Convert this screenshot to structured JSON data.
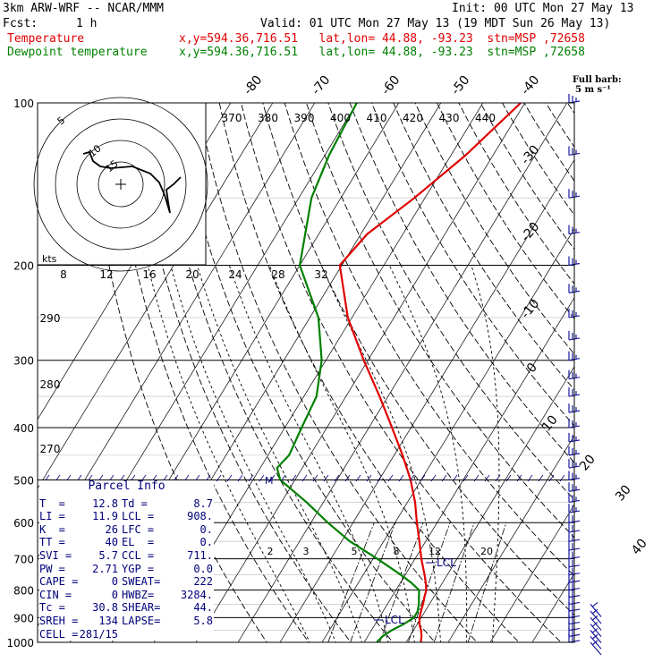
{
  "header": {
    "model": "3km ARW-WRF -- NCAR/MMM",
    "init": "Init: 00 UTC Mon 27 May 13",
    "fcst_label": "Fcst:",
    "fcst_value": "1 h",
    "valid": "Valid: 01 UTC Mon 27 May 13 (19 MDT Sun 26 May 13)",
    "temp_label": "Temperature",
    "temp_loc": "x,y=594.36,716.51   lat,lon= 44.88, -93.23  stn=MSP ,72658",
    "dew_label": "Dewpoint temperature",
    "dew_loc": "x,y=594.36,716.51   lat,lon= 44.88, -93.23  stn=MSP ,72658"
  },
  "wind_key": {
    "line1": "Full barb:",
    "line2": "5 m s⁻¹"
  },
  "hodograph": {
    "rings": [
      "5",
      "10",
      "15"
    ],
    "units": "kts"
  },
  "parcel_info": {
    "title": "Parcel Info",
    "rows": [
      [
        "T  =",
        "12.8",
        "Td =",
        "8.7"
      ],
      [
        "LI =",
        "11.9",
        "LCL =",
        "908."
      ],
      [
        "K  =",
        "26",
        "LFC =",
        "0."
      ],
      [
        "TT =",
        "40",
        "EL  =",
        "0."
      ],
      [
        "SVI =",
        "5.7",
        "CCL =",
        "711."
      ],
      [
        "PW =",
        "2.71",
        "YGP =",
        "0.0"
      ],
      [
        "CAPE =",
        "0",
        "SWEAT=",
        "222"
      ],
      [
        "CIN =",
        "0",
        "HWBZ=",
        "3284."
      ],
      [
        "Tc =",
        "30.8",
        "SHEAR=",
        "44."
      ],
      [
        "SREH =",
        "134",
        "LAPSE=",
        "5.8"
      ],
      [
        "CELL =",
        "281/15",
        "",
        ""
      ]
    ]
  },
  "chart_data": {
    "type": "line",
    "title": "",
    "ylabel": "",
    "xlabel": "",
    "y_scale": "log",
    "ylim": [
      1000,
      100
    ],
    "pressure_ticks": [
      "100",
      "200",
      "300",
      "400",
      "500",
      "600",
      "700",
      "800",
      "900",
      "1000"
    ],
    "isotherm_labels": [
      "-80",
      "-70",
      "-60",
      "-50",
      "-40",
      "-30",
      "-20",
      "-10",
      "0",
      "10",
      "20",
      "30",
      "40"
    ],
    "theta_labels": [
      "370",
      "380",
      "390",
      "400",
      "410",
      "420",
      "430",
      "440"
    ],
    "dry_adiabat_labels": [
      "290",
      "280",
      "270"
    ],
    "mixing_ratio_labels": [
      "2",
      "3",
      "5",
      "8",
      "12",
      "20"
    ],
    "hodo_speed_labels": [
      "8",
      "12",
      "16",
      "20",
      "24",
      "28",
      "32"
    ],
    "annotations": [
      "LCL",
      "LCL",
      "M"
    ],
    "series": [
      {
        "name": "Temperature",
        "color": "#e00000",
        "points": [
          [
            1000,
            13.5
          ],
          [
            975,
            12.8
          ],
          [
            950,
            11.8
          ],
          [
            925,
            10.5
          ],
          [
            900,
            9.6
          ],
          [
            875,
            9.0
          ],
          [
            850,
            8.5
          ],
          [
            825,
            7.8
          ],
          [
            800,
            7.2
          ],
          [
            775,
            6.0
          ],
          [
            750,
            4.6
          ],
          [
            700,
            1.5
          ],
          [
            650,
            -1.5
          ],
          [
            600,
            -4.8
          ],
          [
            550,
            -8.2
          ],
          [
            500,
            -12.5
          ],
          [
            450,
            -18
          ],
          [
            400,
            -24.5
          ],
          [
            350,
            -32
          ],
          [
            300,
            -41
          ],
          [
            250,
            -51
          ],
          [
            200,
            -60.5
          ],
          [
            175,
            -58.5
          ],
          [
            150,
            -52.5
          ],
          [
            125,
            -46.5
          ],
          [
            100,
            -41
          ]
        ]
      },
      {
        "name": "Dewpoint temperature",
        "color": "#008000",
        "points": [
          [
            1000,
            3.0
          ],
          [
            975,
            3.5
          ],
          [
            950,
            4.8
          ],
          [
            925,
            6.8
          ],
          [
            900,
            8.3
          ],
          [
            875,
            8.2
          ],
          [
            850,
            7.5
          ],
          [
            825,
            6.5
          ],
          [
            800,
            5.5
          ],
          [
            775,
            2.5
          ],
          [
            750,
            -1.0
          ],
          [
            700,
            -9
          ],
          [
            650,
            -18
          ],
          [
            600,
            -26
          ],
          [
            550,
            -34
          ],
          [
            500,
            -43.5
          ],
          [
            475,
            -46
          ],
          [
            450,
            -45
          ],
          [
            400,
            -46
          ],
          [
            350,
            -47
          ],
          [
            300,
            -51
          ],
          [
            250,
            -58
          ],
          [
            200,
            -70
          ],
          [
            150,
            -77
          ],
          [
            125,
            -79
          ],
          [
            100,
            -80
          ]
        ]
      }
    ],
    "legend": "top-left"
  }
}
